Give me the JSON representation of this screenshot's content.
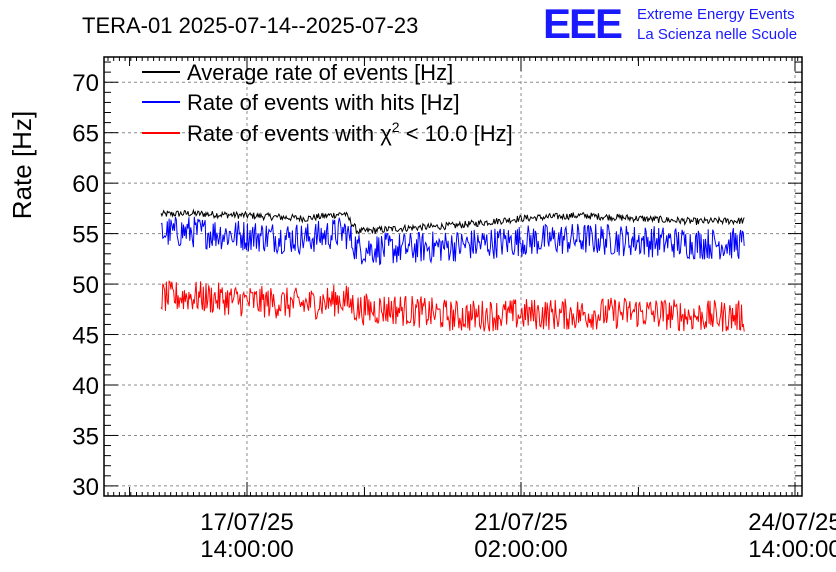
{
  "header": {
    "title": "TERA-01 2025-07-14--2025-07-23",
    "logo_text": "EEE",
    "logo_line1": "Extreme Energy Events",
    "logo_line2": "La Scienza nelle Scuole"
  },
  "colors": {
    "black_series": "#000000",
    "blue_series": "#0000ff",
    "red_series": "#ff0000",
    "logo": "#1a1aff",
    "grid": "#8c8c8c"
  },
  "chart_data": {
    "type": "line",
    "title": "TERA-01 2025-07-14--2025-07-23",
    "ylabel": "Rate [Hz]",
    "xlabel": "",
    "ylim": [
      29,
      72.5
    ],
    "xlim_hours_note": "",
    "grid": true,
    "legend_placement": "top-left",
    "y_ticks": [
      30,
      35,
      40,
      45,
      50,
      55,
      60,
      65,
      70
    ],
    "x_ticks": [
      {
        "line1": "17/07/25",
        "line2": "14:00:00"
      },
      {
        "line1": "21/07/25",
        "line2": "02:00:00"
      },
      {
        "line1": "24/07/25",
        "line2": "14:00:00"
      }
    ],
    "legend": [
      {
        "label": "Average rate of events [Hz]",
        "color": "#000000"
      },
      {
        "label": "Rate of events with hits [Hz]",
        "color": "#0000ff"
      },
      {
        "label_prefix": "Rate of events with ",
        "label_symbol": "χ",
        "label_sup": "2",
        "label_suffix": " < 10.0 [Hz]",
        "color": "#ff0000"
      }
    ],
    "series": [
      {
        "name": "Average rate of events [Hz]",
        "x": [
          "2025-07-16 02:00",
          "2025-07-16 20:00",
          "2025-07-17 14:00",
          "2025-07-18 08:00",
          "2025-07-18 20:00",
          "2025-07-19 00:00",
          "2025-07-19 12:00",
          "2025-07-20 06:00",
          "2025-07-21 02:00",
          "2025-07-21 20:00",
          "2025-07-22 14:00",
          "2025-07-23 08:00",
          "2025-07-24 02:00"
        ],
        "values": [
          56.8,
          57.0,
          56.8,
          56.5,
          57.0,
          55.2,
          55.5,
          55.8,
          56.5,
          56.8,
          56.5,
          56.2,
          56.3
        ]
      },
      {
        "name": "Rate of events with hits [Hz]",
        "x": [
          "2025-07-16 02:00",
          "2025-07-16 20:00",
          "2025-07-17 14:00",
          "2025-07-18 08:00",
          "2025-07-18 20:00",
          "2025-07-19 00:00",
          "2025-07-19 12:00",
          "2025-07-20 06:00",
          "2025-07-21 02:00",
          "2025-07-21 20:00",
          "2025-07-22 14:00",
          "2025-07-23 08:00",
          "2025-07-24 02:00"
        ],
        "values": [
          55.0,
          55.2,
          54.8,
          54.5,
          55.2,
          53.5,
          53.5,
          53.8,
          54.3,
          54.5,
          54.3,
          54.0,
          54.0
        ]
      },
      {
        "name": "Rate of events with χ² < 10.0 [Hz]",
        "x": [
          "2025-07-16 02:00",
          "2025-07-16 20:00",
          "2025-07-17 14:00",
          "2025-07-18 08:00",
          "2025-07-18 20:00",
          "2025-07-19 00:00",
          "2025-07-19 12:00",
          "2025-07-20 06:00",
          "2025-07-21 02:00",
          "2025-07-21 20:00",
          "2025-07-22 14:00",
          "2025-07-23 08:00",
          "2025-07-24 02:00"
        ],
        "values": [
          48.5,
          48.8,
          48.3,
          48.0,
          48.5,
          47.5,
          47.5,
          46.8,
          47.0,
          47.0,
          47.2,
          46.8,
          46.8
        ]
      }
    ]
  }
}
